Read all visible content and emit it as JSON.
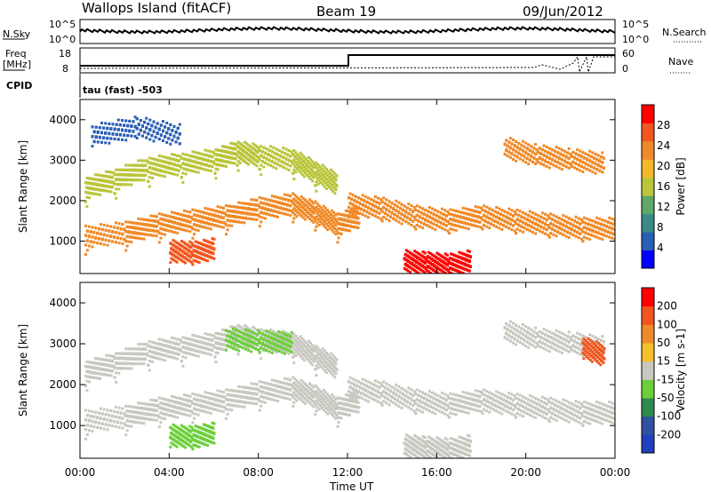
{
  "header": {
    "site_title": "Wallops Island (fitACF)",
    "beam_label": "Beam 19",
    "date_label": "09/Jun/2012",
    "cpid_text": "tau (fast) -503"
  },
  "left_labels": {
    "nsky": "N.Sky",
    "nsky_top": "10^5",
    "nsky_bottom": "10^0",
    "freq_top": "Freq",
    "freq_unit": "[MHz]",
    "freq_18": "18",
    "freq_8": "8",
    "cpid": "CPID"
  },
  "right_labels": {
    "nsearch": "N.Search",
    "nsearch_top": "10^5",
    "nsearch_bottom": "10^0",
    "nave_60": "60",
    "nave_0": "0",
    "nave": "Nave"
  },
  "chart_data": [
    {
      "type": "heatmap",
      "name": "power",
      "ylabel": "Slant Range [km]",
      "yticks": [
        "1000",
        "2000",
        "3000",
        "4000"
      ],
      "xticks": [
        "00:00",
        "04:00",
        "08:00",
        "12:00",
        "16:00",
        "20:00",
        "00:00"
      ],
      "ylim": [
        200,
        4500
      ],
      "colorbar_label": "Power [dB]",
      "colorbar_ticks": [
        "4",
        "8",
        "12",
        "16",
        "20",
        "24",
        "28"
      ],
      "colorbar_colors": [
        "#0000ff",
        "#2a5fb5",
        "#3a8a8a",
        "#5ea868",
        "#b9c53a",
        "#f5b82a",
        "#f08a28",
        "#f2561e",
        "#ff0000"
      ],
      "bands": [
        {
          "points": [
            [
              0.2,
              2300
            ],
            [
              1.5,
              2500
            ],
            [
              3.0,
              2800
            ],
            [
              4.5,
              2900
            ],
            [
              6.0,
              3000
            ],
            [
              7.0,
              3200
            ],
            [
              8.0,
              3100
            ],
            [
              9.5,
              3000
            ],
            [
              10.5,
              2700
            ],
            [
              11.5,
              2400
            ]
          ],
          "color": "#b9c53a"
        },
        {
          "points": [
            [
              0.2,
              1100
            ],
            [
              2.0,
              1200
            ],
            [
              3.5,
              1400
            ],
            [
              5.0,
              1500
            ],
            [
              6.5,
              1600
            ],
            [
              8.0,
              1800
            ],
            [
              9.5,
              1900
            ],
            [
              10.5,
              1700
            ],
            [
              11.5,
              1400
            ],
            [
              12.5,
              1600
            ]
          ],
          "color": "#f08a28"
        },
        {
          "points": [
            [
              12.0,
              1900
            ],
            [
              13.5,
              1800
            ],
            [
              15.0,
              1600
            ],
            [
              16.5,
              1500
            ],
            [
              18.0,
              1600
            ],
            [
              19.5,
              1500
            ],
            [
              21.0,
              1400
            ],
            [
              22.5,
              1300
            ],
            [
              24.0,
              1300
            ]
          ],
          "color": "#f08a28"
        },
        {
          "points": [
            [
              14.5,
              500
            ],
            [
              15.5,
              450
            ],
            [
              16.5,
              400
            ],
            [
              17.5,
              500
            ]
          ],
          "color": "#ff0000"
        },
        {
          "points": [
            [
              4.0,
              750
            ],
            [
              5.0,
              700
            ],
            [
              6.0,
              800
            ]
          ],
          "color": "#f2561e"
        },
        {
          "points": [
            [
              19.0,
              3300
            ],
            [
              20.5,
              3100
            ],
            [
              22.0,
              3000
            ],
            [
              23.5,
              2900
            ]
          ],
          "color": "#f08a28"
        },
        {
          "points": [
            [
              0.5,
              3600
            ],
            [
              2.5,
              3800
            ],
            [
              4.5,
              3600
            ]
          ],
          "color": "#2a5fb5"
        }
      ]
    },
    {
      "type": "heatmap",
      "name": "velocity",
      "ylabel": "Slant Range [km]",
      "yticks": [
        "1000",
        "2000",
        "3000",
        "4000"
      ],
      "xticks": [
        "00:00",
        "04:00",
        "08:00",
        "12:00",
        "16:00",
        "20:00",
        "00:00"
      ],
      "xlabel": "Time UT",
      "ylim": [
        200,
        4500
      ],
      "colorbar_label": "Velocity [m s-1]",
      "colorbar_ticks": [
        "200",
        "100",
        "50",
        "15",
        "-15",
        "-50",
        "-100",
        "-200"
      ],
      "colorbar_colors": [
        "#2040c0",
        "#3050a0",
        "#2f8a50",
        "#6ccf3a",
        "#c8c8c0",
        "#f5c028",
        "#f08a28",
        "#f2561e",
        "#ff0000"
      ],
      "bands": [
        {
          "points": [
            [
              0.2,
              2300
            ],
            [
              1.5,
              2500
            ],
            [
              3.0,
              2800
            ],
            [
              4.5,
              2900
            ],
            [
              6.0,
              3000
            ],
            [
              7.0,
              3200
            ],
            [
              8.0,
              3100
            ],
            [
              9.5,
              3000
            ],
            [
              10.5,
              2700
            ],
            [
              11.5,
              2400
            ]
          ],
          "color": "#c8c8c0"
        },
        {
          "points": [
            [
              0.2,
              1100
            ],
            [
              2.0,
              1200
            ],
            [
              3.5,
              1400
            ],
            [
              5.0,
              1500
            ],
            [
              6.5,
              1600
            ],
            [
              8.0,
              1800
            ],
            [
              9.5,
              1900
            ],
            [
              10.5,
              1700
            ],
            [
              11.5,
              1400
            ],
            [
              12.5,
              1600
            ]
          ],
          "color": "#c8c8c0"
        },
        {
          "points": [
            [
              12.0,
              1900
            ],
            [
              13.5,
              1800
            ],
            [
              15.0,
              1600
            ],
            [
              16.5,
              1500
            ],
            [
              18.0,
              1600
            ],
            [
              19.5,
              1500
            ],
            [
              21.0,
              1400
            ],
            [
              22.5,
              1300
            ],
            [
              24.0,
              1300
            ]
          ],
          "color": "#c8c8c0"
        },
        {
          "points": [
            [
              14.5,
              500
            ],
            [
              15.5,
              450
            ],
            [
              16.5,
              400
            ],
            [
              17.5,
              500
            ]
          ],
          "color": "#c8c8c0"
        },
        {
          "points": [
            [
              4.0,
              750
            ],
            [
              5.0,
              700
            ],
            [
              6.0,
              800
            ]
          ],
          "color": "#6ccf3a"
        },
        {
          "points": [
            [
              19.0,
              3300
            ],
            [
              20.5,
              3100
            ],
            [
              22.0,
              3000
            ],
            [
              23.5,
              2900
            ]
          ],
          "color": "#c8c8c0"
        },
        {
          "points": [
            [
              6.5,
              3100
            ],
            [
              8.0,
              3050
            ],
            [
              9.5,
              3000
            ]
          ],
          "color": "#6ccf3a"
        },
        {
          "points": [
            [
              22.5,
              2900
            ],
            [
              23.5,
              2700
            ]
          ],
          "color": "#f2561e"
        }
      ]
    }
  ]
}
